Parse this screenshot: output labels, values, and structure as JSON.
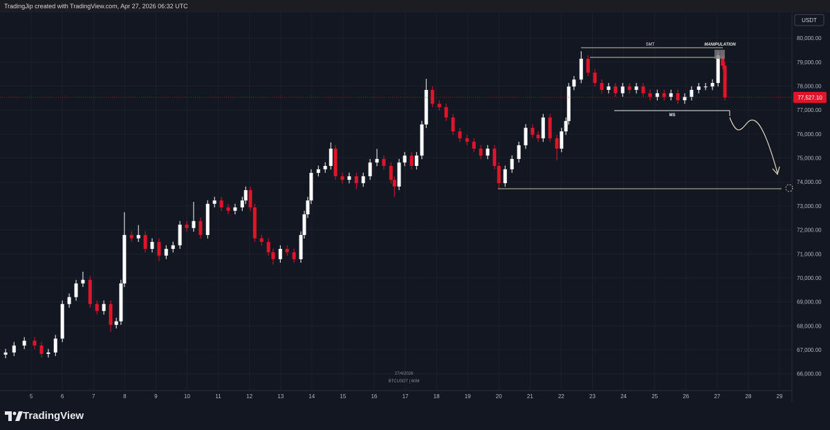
{
  "header": "TradingJip created with TradingView.com, Apr 27, 2026 06:32 UTC",
  "footer_brand": "TradingView",
  "currency": "USDT",
  "chart_data": {
    "type": "candlestick",
    "up_color": "#ffffff",
    "down_color": "#e0142a",
    "annotations": {
      "smt": "SMT",
      "manipulation": "MANIPULATION",
      "ms": "MS"
    },
    "watermark": [
      "27/4/2026",
      "BTCUSDT | 60M"
    ],
    "last_price": {
      "value": 77527.1,
      "label": "77,527.10"
    },
    "xlim": [
      4.0,
      29.4
    ],
    "xticks": [
      5,
      6,
      7,
      8,
      9,
      10,
      11,
      12,
      13,
      14,
      15,
      16,
      17,
      18,
      19,
      20,
      21,
      22,
      23,
      24,
      25,
      26,
      27,
      28,
      29
    ],
    "ylim": [
      65300,
      81070
    ],
    "yticks": [
      {
        "value": 66000,
        "label": "66,000.00"
      },
      {
        "value": 67000,
        "label": "67,000.00"
      },
      {
        "value": 68000,
        "label": "68,000.00"
      },
      {
        "value": 69000,
        "label": "69,000.00"
      },
      {
        "value": 70000,
        "label": "70,000.00"
      },
      {
        "value": 71000,
        "label": "71,000.00"
      },
      {
        "value": 72000,
        "label": "72,000.00"
      },
      {
        "value": 73000,
        "label": "73,000.00"
      },
      {
        "value": 74000,
        "label": "74,000.00"
      },
      {
        "value": 75000,
        "label": "75,000.00"
      },
      {
        "value": 76000,
        "label": "76,000.00"
      },
      {
        "value": 77000,
        "label": "77,000.00"
      },
      {
        "value": 78000,
        "label": "78,000.00"
      },
      {
        "value": 79000,
        "label": "79,000.00"
      },
      {
        "value": 80000,
        "label": "80,000.00"
      }
    ],
    "x": [
      4.18,
      4.45,
      4.78,
      5.11,
      5.33,
      5.55,
      5.78,
      6.0,
      6.22,
      6.44,
      6.66,
      6.89,
      7.11,
      7.33,
      7.55,
      7.73,
      7.88,
      7.99,
      8.22,
      8.44,
      8.66,
      8.88,
      9.1,
      9.33,
      9.55,
      9.77,
      9.99,
      10.21,
      10.43,
      10.66,
      10.88,
      11.1,
      11.32,
      11.54,
      11.77,
      11.88,
      12.03,
      12.17,
      12.39,
      12.61,
      12.76,
      12.99,
      13.21,
      13.43,
      13.65,
      13.76,
      13.87,
      13.98,
      14.21,
      14.43,
      14.61,
      14.76,
      14.98,
      15.2,
      15.43,
      15.65,
      15.87,
      16.09,
      16.31,
      16.54,
      16.65,
      16.8,
      16.98,
      17.2,
      17.36,
      17.53,
      17.67,
      17.87,
      18.09,
      18.31,
      18.53,
      18.75,
      18.98,
      19.2,
      19.42,
      19.64,
      19.86,
      20.0,
      20.2,
      20.42,
      20.64,
      20.86,
      21.08,
      21.26,
      21.42,
      21.64,
      21.86,
      22.01,
      22.15,
      22.24,
      22.41,
      22.64,
      22.86,
      23.08,
      23.3,
      23.52,
      23.74,
      23.97,
      24.19,
      24.41,
      24.63,
      24.85,
      25.08,
      25.3,
      25.52,
      25.74,
      25.96,
      26.18,
      26.41,
      26.63,
      26.85,
      27.03,
      27.18,
      27.25
    ],
    "open": [
      66800,
      66890,
      67180,
      67380,
      67180,
      66830,
      66890,
      67470,
      68910,
      69200,
      69770,
      69920,
      68910,
      68620,
      68910,
      68040,
      68190,
      69770,
      71790,
      71650,
      71790,
      71210,
      71500,
      70930,
      71210,
      71360,
      72220,
      72080,
      72370,
      71790,
      73090,
      73230,
      72940,
      72800,
      72940,
      73230,
      73660,
      72940,
      71650,
      71500,
      71070,
      70780,
      71210,
      71070,
      70780,
      71790,
      72650,
      73230,
      74380,
      74530,
      74670,
      75390,
      74240,
      74090,
      74240,
      73950,
      74240,
      74810,
      74960,
      74670,
      74090,
      73810,
      74810,
      75100,
      74670,
      75100,
      76400,
      77840,
      77260,
      77120,
      76690,
      76110,
      75820,
      75680,
      75390,
      75100,
      75390,
      74670,
      73950,
      74530,
      74960,
      75530,
      76260,
      75970,
      75820,
      76690,
      75820,
      75390,
      76110,
      76540,
      77980,
      78270,
      79140,
      78560,
      78130,
      77840,
      77980,
      77700,
      77980,
      77840,
      77980,
      77700,
      77550,
      77700,
      77550,
      77700,
      77410,
      77550,
      77840,
      77980,
      77980,
      78130,
      79280,
      78850
    ],
    "high": [
      67040,
      67330,
      67530,
      67530,
      67330,
      67040,
      67620,
      69060,
      69350,
      69920,
      70260,
      70070,
      69060,
      69060,
      69060,
      68340,
      69920,
      72740,
      71940,
      72200,
      71940,
      71650,
      71650,
      71360,
      71510,
      72370,
      72370,
      73170,
      72520,
      73240,
      73380,
      73380,
      73090,
      73090,
      73380,
      73810,
      73810,
      73090,
      71800,
      71650,
      71220,
      71360,
      71360,
      71220,
      71940,
      72800,
      73380,
      74530,
      74680,
      74820,
      75650,
      75540,
      74390,
      74390,
      74390,
      74390,
      74960,
      75380,
      75110,
      74820,
      74240,
      74960,
      75250,
      75250,
      75250,
      76550,
      78300,
      77990,
      77410,
      77270,
      76840,
      76260,
      75970,
      75830,
      75540,
      75540,
      75540,
      74820,
      74680,
      75110,
      75680,
      76410,
      76410,
      76120,
      76840,
      76840,
      75970,
      76260,
      76690,
      78130,
      78420,
      79450,
      79290,
      78710,
      78280,
      78130,
      78130,
      78130,
      78130,
      78130,
      78130,
      77850,
      77850,
      77850,
      77850,
      77850,
      77700,
      77990,
      78130,
      78130,
      78280,
      79430,
      79430,
      79000
    ],
    "low": [
      66650,
      66740,
      67030,
      67030,
      66680,
      66680,
      66740,
      67320,
      68760,
      69050,
      69620,
      68760,
      68470,
      68470,
      67760,
      67890,
      68040,
      69620,
      71500,
      71500,
      71060,
      71060,
      70700,
      70780,
      71060,
      71210,
      71930,
      71930,
      71640,
      71640,
      72940,
      72790,
      72650,
      72650,
      72790,
      73080,
      72790,
      71500,
      71350,
      70920,
      70550,
      70630,
      70920,
      70630,
      70630,
      71640,
      72500,
      73080,
      74230,
      74380,
      74520,
      74090,
      73940,
      73940,
      73700,
      73800,
      74090,
      74660,
      74520,
      73940,
      73370,
      73660,
      74660,
      74520,
      74520,
      74950,
      76250,
      77110,
      76970,
      76540,
      75960,
      75670,
      75530,
      75240,
      74950,
      74950,
      74520,
      73720,
      73800,
      74380,
      74810,
      75380,
      75820,
      75670,
      75670,
      75670,
      74900,
      75240,
      75960,
      76390,
      77830,
      78120,
      78410,
      77980,
      77690,
      77690,
      77550,
      77550,
      77690,
      77690,
      77550,
      77400,
      77400,
      77400,
      77400,
      77260,
      77260,
      77400,
      77690,
      77830,
      77830,
      77980,
      78700,
      77400
    ],
    "close": [
      66890,
      67180,
      67380,
      67180,
      66830,
      66890,
      67470,
      68910,
      69200,
      69770,
      69920,
      68910,
      68620,
      68910,
      68040,
      68190,
      69770,
      71790,
      71650,
      71790,
      71210,
      71500,
      70930,
      71210,
      71360,
      72220,
      72080,
      72370,
      71790,
      73090,
      73230,
      72940,
      72800,
      72940,
      73230,
      73660,
      72940,
      71650,
      71500,
      71070,
      70780,
      71210,
      71070,
      70780,
      71790,
      72650,
      73230,
      74380,
      74530,
      74670,
      75390,
      74240,
      74090,
      74240,
      73950,
      74240,
      74810,
      74960,
      74670,
      74090,
      73810,
      74810,
      75100,
      74670,
      75100,
      76400,
      77840,
      77260,
      77120,
      76690,
      76110,
      75820,
      75680,
      75390,
      75100,
      75390,
      74670,
      73950,
      74530,
      74960,
      75530,
      76260,
      75970,
      75820,
      76690,
      75820,
      75390,
      76110,
      76540,
      77980,
      78270,
      79140,
      78560,
      78130,
      77840,
      77980,
      77700,
      77980,
      77840,
      77980,
      77700,
      77550,
      77700,
      77550,
      77700,
      77410,
      77550,
      77840,
      77980,
      77980,
      78130,
      79280,
      78850,
      77527.1
    ]
  }
}
